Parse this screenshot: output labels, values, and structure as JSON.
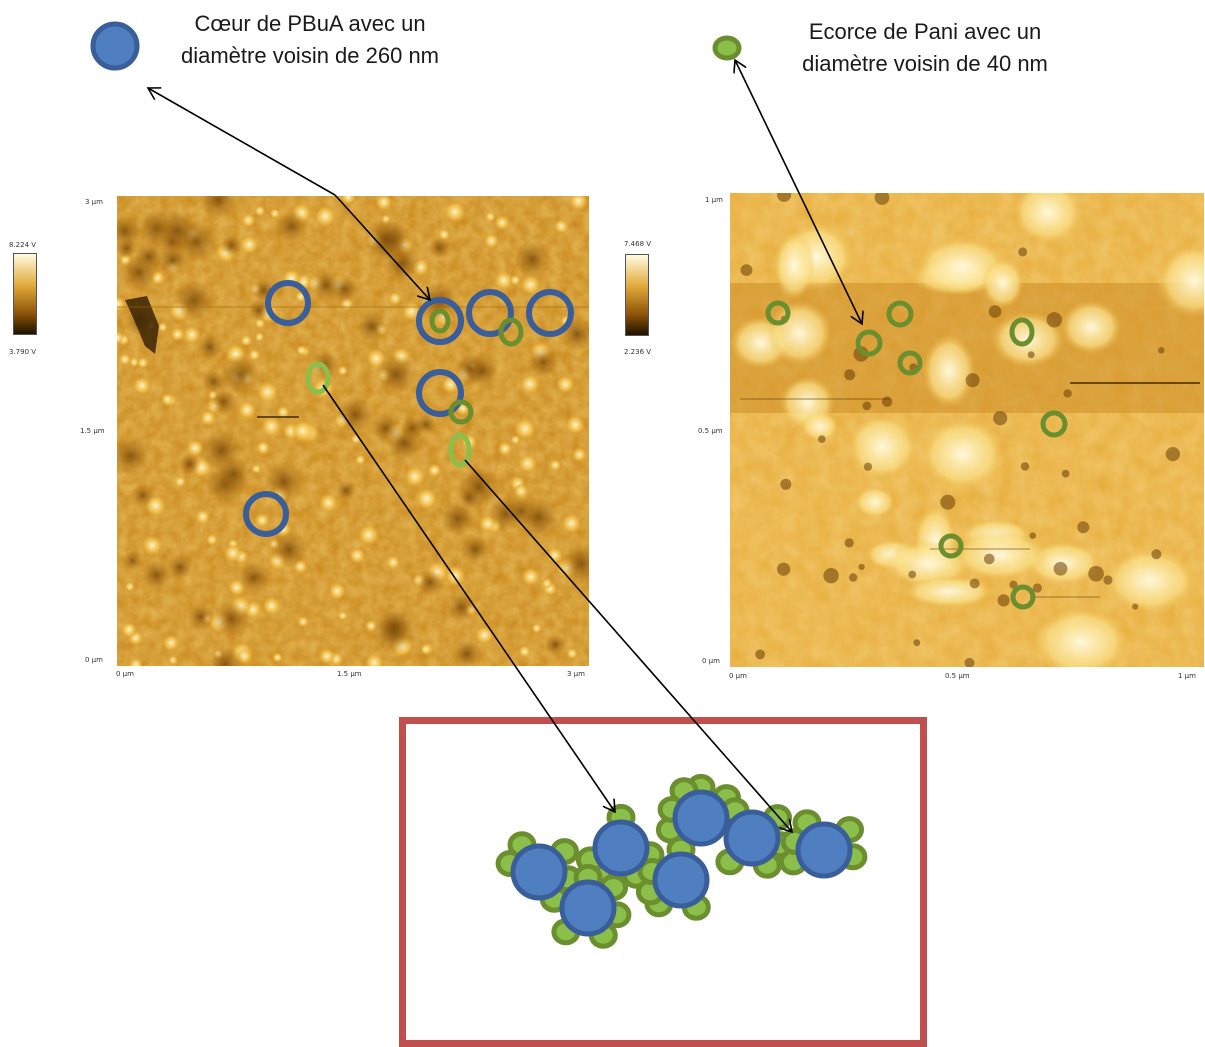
{
  "labels": {
    "core_line1": "Cœur de PBuA avec un",
    "core_line2": "diamètre voisin de 260 nm",
    "shell_line1": "Ecorce de Pani avec un",
    "shell_line2": "diamètre voisin de 40 nm"
  },
  "left_image": {
    "y_ticks": [
      "3 µm",
      "1.5 µm",
      "0 µm"
    ],
    "x_ticks": [
      "0 µm",
      "1.5 µm",
      "3 µm"
    ],
    "colorbar_max": "8.224 V",
    "colorbar_min": "3.790 V"
  },
  "right_image": {
    "y_ticks": [
      "1 µm",
      "0.5 µm",
      "0 µm"
    ],
    "x_ticks": [
      "0 µm",
      "0.5 µm",
      "1 µm"
    ],
    "colorbar_max": "7.468 V",
    "colorbar_min": "2.236 V"
  },
  "colors": {
    "core_fill": "#4f7fc0",
    "core_ring": "#3a5e9a",
    "shell": "#6b8e2f",
    "shell_light": "#8bbf4a",
    "box_border": "#c0504d",
    "afm_dark": "#6b3d00",
    "afm_mid": "#c98a1c",
    "afm_light": "#fff2b0"
  }
}
